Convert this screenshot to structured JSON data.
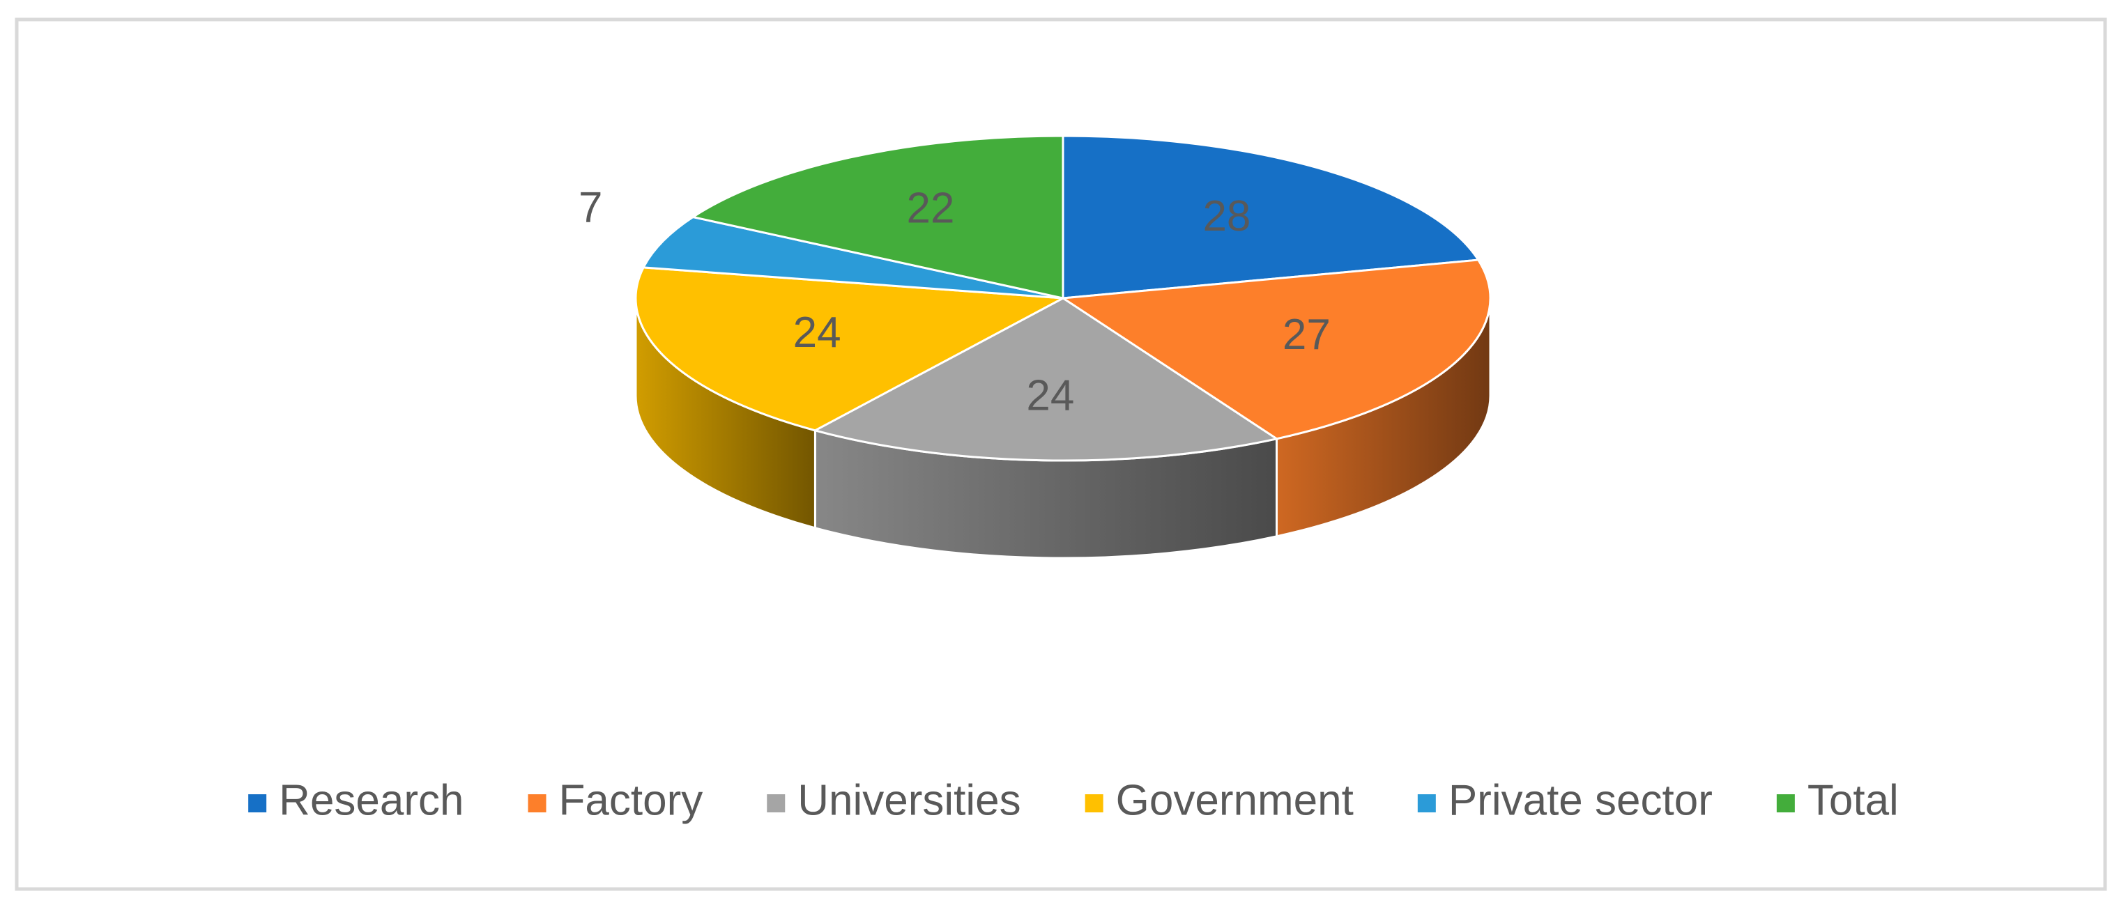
{
  "chart_data": {
    "type": "pie3d",
    "categories": [
      "Research",
      "Factory",
      "Universities",
      "Government",
      "Private sector",
      "Total"
    ],
    "values": [
      28,
      27,
      24,
      24,
      7,
      22
    ],
    "colors": [
      "#1670c6",
      "#fd7f2a",
      "#a5a5a5",
      "#ffc000",
      "#2b9bd8",
      "#43ad3b"
    ],
    "legend": "bottom"
  }
}
